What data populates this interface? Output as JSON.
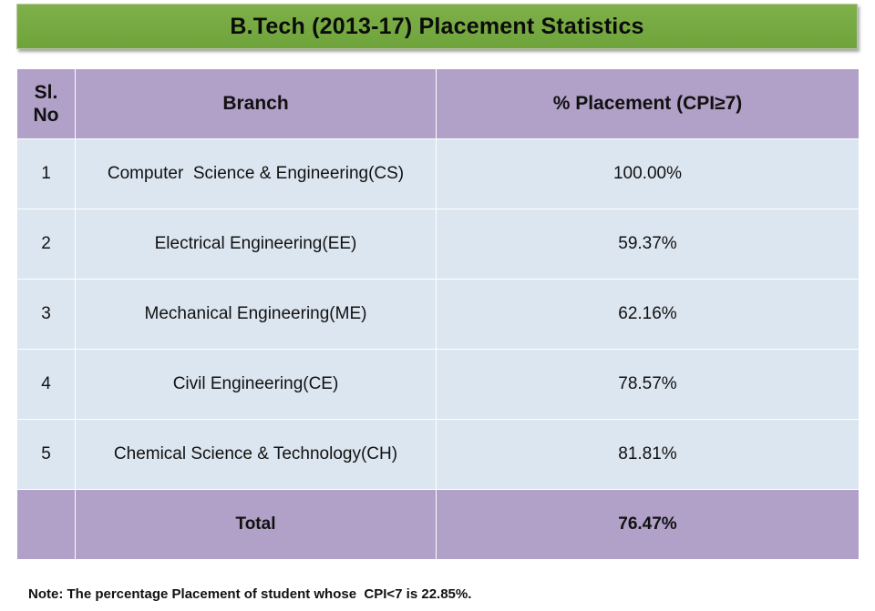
{
  "title": "B.Tech (2013-17) Placement Statistics",
  "table": {
    "headers": {
      "sl_no": "Sl.\nNo",
      "branch": "Branch",
      "placement": "% Placement (CPI≥7)"
    },
    "rows": [
      {
        "sl_no": "1",
        "branch": "Computer  Science & Engineering(CS)",
        "placement": "100.00%"
      },
      {
        "sl_no": "2",
        "branch": "Electrical Engineering(EE)",
        "placement": "59.37%"
      },
      {
        "sl_no": "3",
        "branch": "Mechanical Engineering(ME)",
        "placement": "62.16%"
      },
      {
        "sl_no": "4",
        "branch": "Civil Engineering(CE)",
        "placement": "78.57%"
      },
      {
        "sl_no": "5",
        "branch": "Chemical Science & Technology(CH)",
        "placement": "81.81%"
      }
    ],
    "total": {
      "sl_no": "",
      "label": "Total",
      "placement": "76.47%"
    }
  },
  "note": "Note: The percentage Placement of student whose  CPI<7 is 22.85%.",
  "colors": {
    "title_bar": "#7fb04a",
    "header_fill": "#b1a0c7",
    "row_fill": "#dce6f0"
  }
}
